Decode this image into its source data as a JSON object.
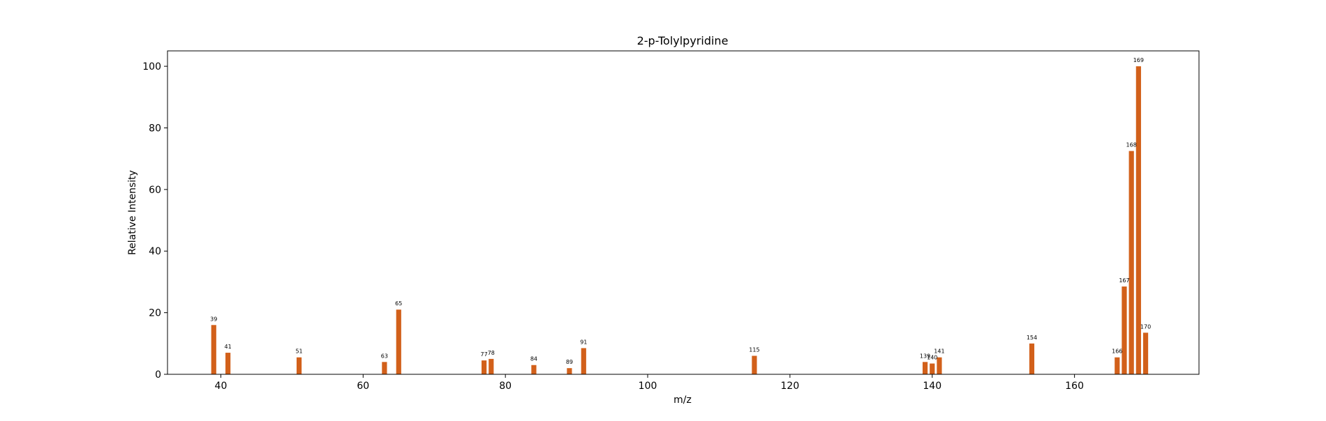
{
  "chart_data": {
    "type": "bar",
    "title": "2-p-Tolylpyridine",
    "xlabel": "m/z",
    "ylabel": "Relative Intensity",
    "xlim": [
      32.5,
      177.5
    ],
    "ylim": [
      0,
      105
    ],
    "xticks": [
      40,
      60,
      80,
      100,
      120,
      140,
      160
    ],
    "yticks": [
      0,
      20,
      40,
      60,
      80,
      100
    ],
    "bar_color": "#D2601A",
    "grid": false,
    "legend": "none",
    "x": [
      39,
      41,
      51,
      63,
      65,
      77,
      78,
      84,
      89,
      91,
      115,
      139,
      140,
      141,
      154,
      166,
      167,
      168,
      169,
      170
    ],
    "values": [
      16,
      7,
      5.5,
      4,
      21,
      4.5,
      5,
      3,
      2,
      8.5,
      6,
      4,
      3.5,
      5.5,
      10,
      5.5,
      28.5,
      72.5,
      100,
      13.5
    ],
    "labels": [
      "39",
      "41",
      "51",
      "63",
      "65",
      "77",
      "78",
      "84",
      "89",
      "91",
      "115",
      "139",
      "140",
      "141",
      "154",
      "166",
      "167",
      "168",
      "169",
      "170"
    ]
  }
}
